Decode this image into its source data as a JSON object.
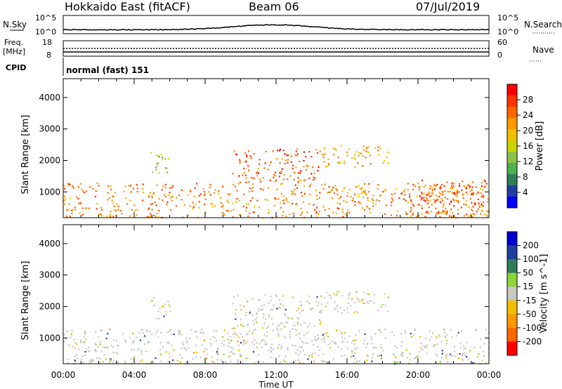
{
  "header": {
    "station": "Hokkaido East (fitACF)",
    "beam": "Beam 06",
    "date": "07/Jul/2019"
  },
  "sky_panel": {
    "left_label": "N.Sky",
    "left_ticks": [
      "10^5",
      "10^0"
    ],
    "right_ticks": [
      "10^5",
      "10^0"
    ],
    "right_label": "N.Search"
  },
  "freq_panel": {
    "left_label_line1": "Freq.",
    "left_label_line2": "[MHz]",
    "left_ticks": [
      "18",
      "8"
    ],
    "right_ticks": [
      "60",
      "0"
    ],
    "right_label": "Nave"
  },
  "cpid_panel": {
    "label": "CPID",
    "mode": "normal (fast) 151"
  },
  "x_axis": {
    "label": "Time UT",
    "ticks": [
      "00:00",
      "04:00",
      "08:00",
      "12:00",
      "16:00",
      "20:00",
      "00:00"
    ]
  },
  "colors": {
    "power_scale": [
      "#0000ff",
      "#1f3fa0",
      "#2e7d5a",
      "#4caf50",
      "#8bc34a",
      "#c8d400",
      "#f0c000",
      "#ff9900",
      "#ff6600",
      "#ff3300",
      "#ff0000"
    ],
    "velocity_scale": [
      "#ff0000",
      "#ff6600",
      "#ff9900",
      "#f0c000",
      "#c8c8c0",
      "#8bd43a",
      "#2e7d5a",
      "#1f3fa0",
      "#0000cc"
    ]
  },
  "chart_data": [
    {
      "type": "heatmap",
      "title": "",
      "xlabel": "Time UT",
      "ylabel": "Slant Range [km]",
      "xlim": [
        "00:00",
        "24:00"
      ],
      "ylim": [
        180,
        4600
      ],
      "yticks": [
        1000,
        2000,
        3000,
        4000
      ],
      "colorbar": {
        "label": "Power [dB]",
        "ticks": [
          "4",
          "8",
          "12",
          "16",
          "20",
          "24",
          "28"
        ],
        "range": [
          0,
          30
        ]
      },
      "echo_regions": [
        {
          "t_start": 0.0,
          "t_end": 24.0,
          "range_min": 200,
          "range_max": 1300,
          "power_db": 24
        },
        {
          "t_start": 4.8,
          "t_end": 6.0,
          "range_min": 1600,
          "range_max": 2300,
          "power_db": 14
        },
        {
          "t_start": 9.5,
          "t_end": 14.5,
          "range_min": 1300,
          "range_max": 2400,
          "power_db": 26
        },
        {
          "t_start": 14.5,
          "t_end": 18.3,
          "range_min": 1800,
          "range_max": 2500,
          "power_db": 22
        },
        {
          "t_start": 19.8,
          "t_end": 24.0,
          "range_min": 300,
          "range_max": 1400,
          "power_db": 28
        }
      ]
    },
    {
      "type": "heatmap",
      "title": "",
      "xlabel": "Time UT",
      "ylabel": "Slant Range [km]",
      "xlim": [
        "00:00",
        "24:00"
      ],
      "ylim": [
        180,
        4600
      ],
      "yticks": [
        1000,
        2000,
        3000,
        4000
      ],
      "colorbar": {
        "label": "Velocity [m s^-1]",
        "ticks": [
          "200",
          "100",
          "50",
          "15",
          "-15",
          "-50",
          "-100",
          "-200"
        ],
        "range": [
          -250,
          250
        ]
      },
      "echo_regions": [
        {
          "t_start": 0.0,
          "t_end": 24.0,
          "range_min": 200,
          "range_max": 1300,
          "velocity": 0
        },
        {
          "t_start": 4.8,
          "t_end": 6.0,
          "range_min": 1600,
          "range_max": 2300,
          "velocity": 0
        },
        {
          "t_start": 9.5,
          "t_end": 14.5,
          "range_min": 1300,
          "range_max": 2400,
          "velocity": 0
        },
        {
          "t_start": 14.5,
          "t_end": 18.3,
          "range_min": 1800,
          "range_max": 2500,
          "velocity": 0
        },
        {
          "t_start": 0.0,
          "t_end": 2.0,
          "range_min": 180,
          "range_max": 450,
          "velocity": 20
        }
      ]
    }
  ]
}
